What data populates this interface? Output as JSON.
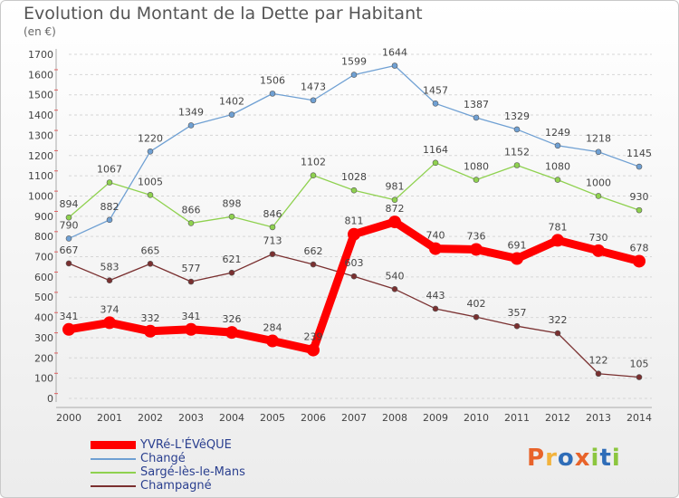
{
  "title": "Evolution du Montant de la Dette par Habitant",
  "subtitle": "(en €)",
  "logo": {
    "text": "Proxiti",
    "colors": [
      "#e8632a",
      "#f2b33d",
      "#2f6db8",
      "#e8632a",
      "#8cc63f",
      "#2f6db8",
      "#8cc63f"
    ]
  },
  "chart_data": {
    "type": "line",
    "title": "Evolution du Montant de la Dette par Habitant",
    "subtitle": "(en €)",
    "x": [
      "2000",
      "2001",
      "2002",
      "2003",
      "2004",
      "2005",
      "2006",
      "2007",
      "2008",
      "2009",
      "2010",
      "2011",
      "2012",
      "2013",
      "2014"
    ],
    "ylim": [
      0,
      1700
    ],
    "yticks": [
      0,
      100,
      200,
      300,
      400,
      500,
      600,
      700,
      800,
      900,
      1000,
      1100,
      1200,
      1300,
      1400,
      1500,
      1600,
      1700
    ],
    "grid": "horizontal dashed",
    "legend_position": "bottom-left",
    "series": [
      {
        "name": "YVRé-L'ÉVêQUE",
        "color": "#ff0000",
        "values": [
          341,
          374,
          332,
          341,
          326,
          284,
          239,
          811,
          872,
          740,
          736,
          691,
          781,
          730,
          678
        ]
      },
      {
        "name": "Changé",
        "color": "#6fa0d3",
        "values": [
          790,
          882,
          1220,
          1349,
          1402,
          1506,
          1473,
          1599,
          1644,
          1457,
          1387,
          1329,
          1249,
          1218,
          1145
        ]
      },
      {
        "name": "Sargé-lès-le-Mans",
        "color": "#8fd14f",
        "values": [
          894,
          1067,
          1005,
          866,
          898,
          846,
          1102,
          1028,
          981,
          1164,
          1080,
          1152,
          1080,
          1000,
          930
        ]
      },
      {
        "name": "Champagné",
        "color": "#7a3030",
        "values": [
          667,
          583,
          665,
          577,
          621,
          713,
          662,
          603,
          540,
          443,
          402,
          357,
          322,
          122,
          105
        ]
      }
    ]
  }
}
